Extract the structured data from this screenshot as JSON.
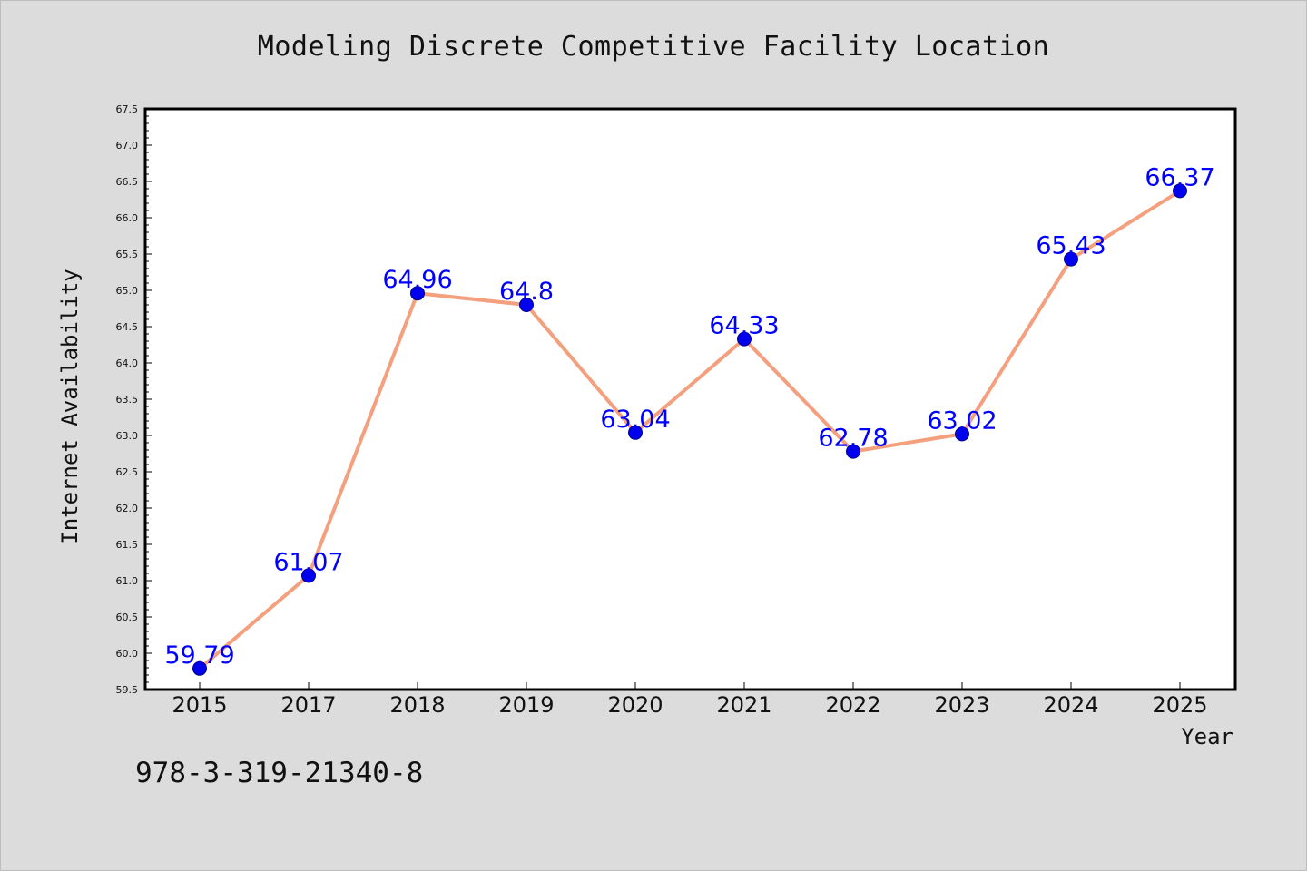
{
  "title": "Modeling Discrete Competitive Facility Location",
  "footer_text": "978-3-319-21340-8",
  "colors": {
    "background": "#dcdcdc",
    "plot_background": "#ffffff",
    "line": "#f4a07e",
    "marker": "#0000ee",
    "data_label": "#0000ff",
    "axis": "#000000"
  },
  "chart_data": {
    "type": "line",
    "title": "Modeling Discrete Competitive Facility Location",
    "xlabel": "Year",
    "ylabel": "Internet Availability",
    "categories": [
      "2015",
      "2017",
      "2018",
      "2019",
      "2020",
      "2021",
      "2022",
      "2023",
      "2024",
      "2025"
    ],
    "series": [
      {
        "values": [
          59.79,
          61.07,
          64.96,
          64.8,
          63.04,
          64.33,
          62.78,
          63.02,
          65.43,
          66.37
        ],
        "data_labels": [
          "59.79",
          "61.07",
          "64.96",
          "64.8",
          "63.04",
          "64.33",
          "62.78",
          "63.02",
          "65.43",
          "66.37"
        ]
      }
    ],
    "ylim": [
      59.5,
      67.5
    ],
    "yticks": [
      "59.5",
      "60.0",
      "60.5",
      "61.0",
      "61.5",
      "62.0",
      "62.5",
      "63.0",
      "63.5",
      "64.0",
      "64.5",
      "65.0",
      "65.5",
      "66.0",
      "66.5",
      "67.0",
      "67.5"
    ],
    "grid": false,
    "legend": "none"
  }
}
